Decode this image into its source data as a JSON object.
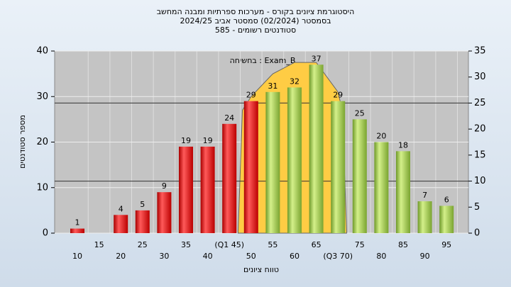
{
  "chart_data": {
    "type": "bar",
    "title": [
      "היסטוגרמת ציונים בקורס - מערכות ספרתיות ומבנה המחשב",
      "בסמסטר  (02/2024)  סמסטר אביב 2024/25",
      "סטודנטים רשומים - 585"
    ],
    "annotation": "בחשיחה : Exam_B",
    "x_label": "טווח ציונים",
    "y_label": "מספר סטודנטים",
    "categories": [
      "10",
      "15",
      "20",
      "25",
      "30",
      "35",
      "40",
      "(Q1 45)",
      "50",
      "55",
      "60",
      "65",
      "(Q3 70)",
      "75",
      "80",
      "85",
      "90",
      "95"
    ],
    "values": [
      1,
      null,
      4,
      5,
      9,
      19,
      19,
      24,
      29,
      31,
      32,
      37,
      29,
      25,
      20,
      18,
      7,
      6
    ],
    "colors": [
      "red",
      "red",
      "red",
      "red",
      "red",
      "red",
      "red",
      "red",
      "red",
      "green",
      "green",
      "green",
      "green",
      "green",
      "green",
      "green",
      "green",
      "green"
    ],
    "ylim": [
      0,
      40
    ],
    "yticks": [
      0,
      10,
      20,
      30,
      40
    ],
    "y2lim": [
      0,
      35
    ],
    "y2ticks": [
      0,
      5,
      10,
      15,
      20,
      25,
      30,
      35
    ],
    "y2_lines": [
      25,
      10
    ],
    "curve": {
      "color": "#ffcc44",
      "x": [
        47,
        48,
        50,
        55,
        60,
        65,
        70,
        71,
        72
      ],
      "values": [
        0,
        27,
        30,
        35,
        37.5,
        37.5,
        31,
        27,
        0
      ]
    },
    "grid": true
  }
}
